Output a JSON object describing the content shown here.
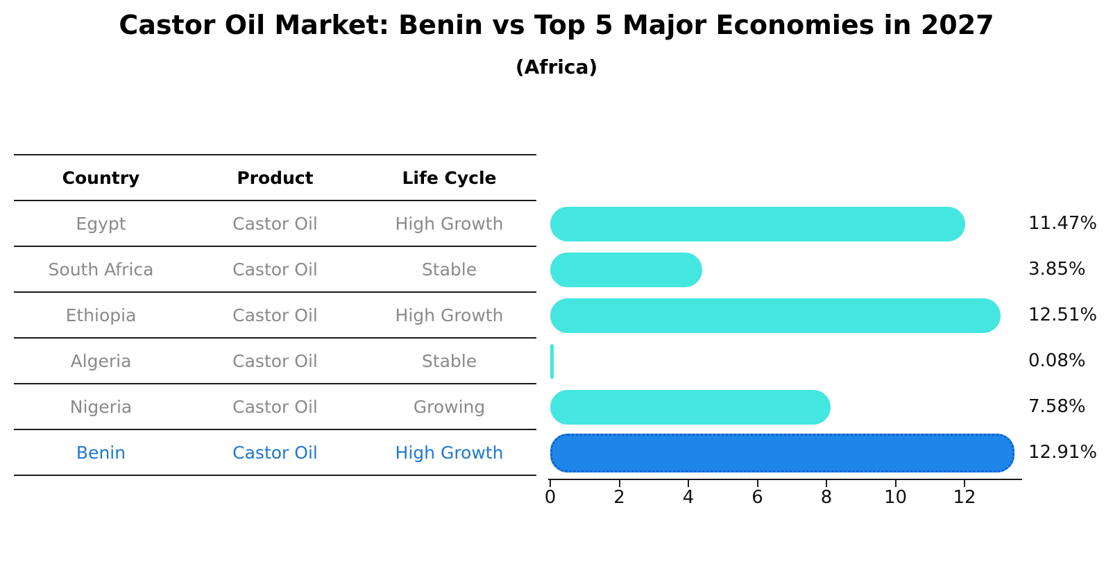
{
  "title": "Castor Oil Market: Benin vs Top 5 Major Economies in 2027",
  "subtitle": "(Africa)",
  "table": {
    "headers": [
      "Country",
      "Product",
      "Life Cycle"
    ],
    "rows": [
      {
        "country": "Egypt",
        "product": "Castor Oil",
        "life_cycle": "High Growth",
        "highlight": false
      },
      {
        "country": "South Africa",
        "product": "Castor Oil",
        "life_cycle": "Stable",
        "highlight": false
      },
      {
        "country": "Ethiopia",
        "product": "Castor Oil",
        "life_cycle": "High Growth",
        "highlight": false
      },
      {
        "country": "Algeria",
        "product": "Castor Oil",
        "life_cycle": "Stable",
        "highlight": false
      },
      {
        "country": "Nigeria",
        "product": "Castor Oil",
        "life_cycle": "Growing",
        "highlight": false
      },
      {
        "country": "Benin",
        "product": "Castor Oil",
        "life_cycle": "High Growth",
        "highlight": true
      }
    ]
  },
  "chart_data": {
    "type": "bar",
    "orientation": "horizontal",
    "title": "Castor Oil Market: Benin vs Top 5 Major Economies in 2027",
    "subtitle": "(Africa)",
    "categories": [
      "Egypt",
      "South Africa",
      "Ethiopia",
      "Algeria",
      "Nigeria",
      "Benin"
    ],
    "values": [
      11.47,
      3.85,
      12.51,
      0.08,
      7.58,
      12.91
    ],
    "value_labels": [
      "11.47%",
      "3.85%",
      "12.51%",
      "0.08%",
      "7.58%",
      "12.91%"
    ],
    "unit": "percent",
    "xlabel": "",
    "ylabel": "",
    "xticks": [
      0,
      2,
      4,
      6,
      8,
      10,
      12
    ],
    "xlim": [
      0,
      13.7
    ],
    "grid": false,
    "legend": false,
    "highlight_index": 5,
    "colors": {
      "bar": "#44e6e0",
      "highlight_bar": "#1e86e8",
      "highlight_border": "#0f5fd0",
      "highlight_text": "#1e78d2",
      "row_text": "#8a8a8a",
      "header_text": "#000000",
      "label_text": "#111111",
      "axis": "#1a1a1a"
    }
  }
}
